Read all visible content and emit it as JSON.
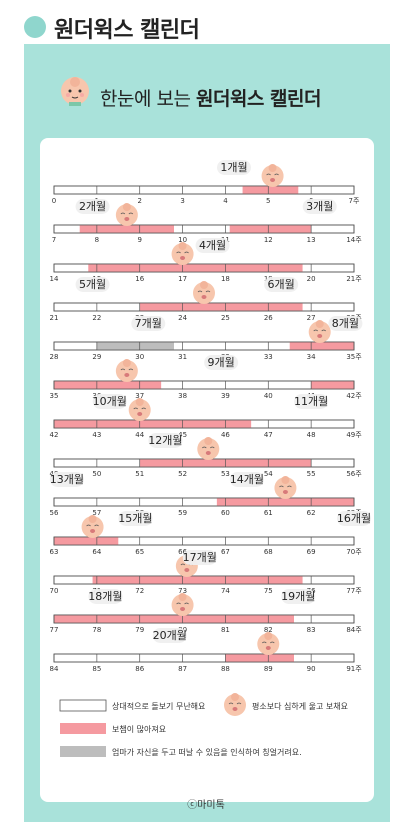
{
  "page_title": "원더윅스 캘린더",
  "header": {
    "prefix": "한눈에 보는 ",
    "bold": "원더윅스 캘린더"
  },
  "rows": [
    {
      "start": 0,
      "end_label": "7주",
      "fussy": [
        [
          4.4,
          5.7
        ]
      ],
      "clingy": [],
      "months": [
        {
          "label": "1개월",
          "at": 4.2,
          "side": "above"
        }
      ],
      "babies": [
        5.1
      ]
    },
    {
      "start": 7,
      "end_label": "14주",
      "fussy": [
        [
          7.6,
          9.8
        ],
        [
          11.1,
          13.0
        ]
      ],
      "clingy": [],
      "months": [
        {
          "label": "2개월",
          "at": 7.9,
          "side": "above"
        },
        {
          "label": "3개월",
          "at": 13.2,
          "side": "above"
        }
      ],
      "babies": [
        8.7
      ]
    },
    {
      "start": 14,
      "end_label": "21주",
      "fussy": [
        [
          14.8,
          19.8
        ]
      ],
      "clingy": [],
      "months": [
        {
          "label": "4개월",
          "at": 17.7,
          "side": "above"
        }
      ],
      "babies": [
        17.0
      ]
    },
    {
      "start": 21,
      "end_label": "28주",
      "fussy": [
        [
          23.0,
          26.8
        ]
      ],
      "clingy": [],
      "months": [
        {
          "label": "5개월",
          "at": 21.9,
          "side": "above"
        },
        {
          "label": "6개월",
          "at": 26.3,
          "side": "above"
        }
      ],
      "babies": [
        24.5
      ]
    },
    {
      "start": 28,
      "end_label": "35주",
      "fussy": [
        [
          33.5,
          35.0
        ]
      ],
      "clingy": [
        [
          29.0,
          30.8
        ]
      ],
      "months": [
        {
          "label": "7개월",
          "at": 30.2,
          "side": "above"
        },
        {
          "label": "8개월",
          "at": 34.8,
          "side": "above"
        }
      ],
      "babies": [
        34.2
      ]
    },
    {
      "start": 35,
      "end_label": "42주",
      "fussy": [
        [
          35.0,
          37.5
        ],
        [
          41.0,
          42.0
        ]
      ],
      "clingy": [],
      "months": [
        {
          "label": "9개월",
          "at": 38.9,
          "side": "above"
        }
      ],
      "babies": [
        36.7
      ]
    },
    {
      "start": 42,
      "end_label": "49주",
      "fussy": [
        [
          42.0,
          46.6
        ]
      ],
      "clingy": [],
      "months": [
        {
          "label": "10개월",
          "at": 43.3,
          "side": "above"
        },
        {
          "label": "11개월",
          "at": 48.0,
          "side": "above"
        }
      ],
      "babies": [
        44.0
      ]
    },
    {
      "start": 49,
      "end_label": "56주",
      "fussy": [
        [
          51.0,
          55.0
        ]
      ],
      "clingy": [],
      "months": [
        {
          "label": "12개월",
          "at": 51.6,
          "side": "above"
        }
      ],
      "babies": [
        52.6
      ]
    },
    {
      "start": 56,
      "end_label": "63주",
      "fussy": [
        [
          59.8,
          63.0
        ]
      ],
      "clingy": [],
      "months": [
        {
          "label": "13개월",
          "at": 56.3,
          "side": "above"
        },
        {
          "label": "14개월",
          "at": 60.5,
          "side": "above"
        }
      ],
      "babies": [
        61.4
      ]
    },
    {
      "start": 63,
      "end_label": "70주",
      "fussy": [
        [
          63.0,
          64.5
        ]
      ],
      "clingy": [],
      "months": [
        {
          "label": "15개월",
          "at": 64.9,
          "side": "above"
        },
        {
          "label": "16개월",
          "at": 70.0,
          "side": "above"
        }
      ],
      "babies": [
        63.9
      ]
    },
    {
      "start": 70,
      "end_label": "77주",
      "fussy": [
        [
          70.9,
          75.8
        ]
      ],
      "clingy": [],
      "months": [
        {
          "label": "17개월",
          "at": 73.4,
          "side": "above"
        }
      ],
      "babies": [
        73.1
      ]
    },
    {
      "start": 77,
      "end_label": "84주",
      "fussy": [
        [
          77.0,
          82.6
        ]
      ],
      "clingy": [],
      "months": [
        {
          "label": "18개월",
          "at": 78.2,
          "side": "above"
        },
        {
          "label": "19개월",
          "at": 82.7,
          "side": "above"
        }
      ],
      "babies": [
        80.0
      ]
    },
    {
      "start": 84,
      "end_label": "91주",
      "fussy": [
        [
          88.0,
          89.6
        ]
      ],
      "clingy": [],
      "months": [
        {
          "label": "20개월",
          "at": 86.7,
          "side": "above"
        }
      ],
      "babies": [
        89.0
      ]
    }
  ],
  "legend": {
    "white": "상대적으로 돌보기 무난해요",
    "baby": "평소보다 심하게 울고 보채요",
    "pink": "보챔이 많아져요",
    "gray": "엄마가 자신을 두고 떠날 수 있음을 인식하여 칭얼거려요."
  },
  "footer": "ⓒ마미톡",
  "colors": {
    "panel": "#a9e2da",
    "fussy": "#f59aa0",
    "clingy": "#bdbdbd",
    "baby": "#f7c6ad"
  }
}
